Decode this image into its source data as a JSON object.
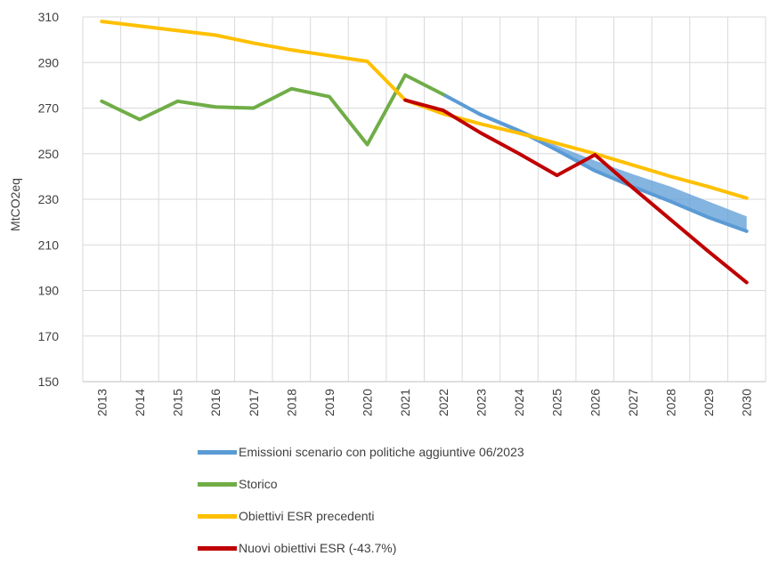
{
  "chart_data": {
    "type": "line",
    "ylabel": "MtCO2eq",
    "ylim": [
      150,
      310
    ],
    "yticks": [
      150,
      170,
      190,
      210,
      230,
      250,
      270,
      290,
      310
    ],
    "categories": [
      "2013",
      "2014",
      "2015",
      "2016",
      "2017",
      "2018",
      "2019",
      "2020",
      "2021",
      "2022",
      "2023",
      "2024",
      "2025",
      "2026",
      "2027",
      "2028",
      "2029",
      "2030"
    ],
    "grid": true,
    "legend_position": "bottom",
    "band": {
      "series": "Emissioni scenario con politiche aggiuntive 06/2023",
      "x": [
        "2022",
        "2023",
        "2024",
        "2025",
        "2026",
        "2027",
        "2028",
        "2029",
        "2030"
      ],
      "lower": [
        276,
        267,
        260,
        251.5,
        242.5,
        235.5,
        229,
        222,
        216
      ],
      "upper": [
        276,
        268,
        261,
        253.5,
        247,
        241,
        235.5,
        229,
        222.5
      ]
    },
    "series": [
      {
        "name": "Emissioni scenario con politiche aggiuntive 06/2023",
        "color": "#5B9BD5",
        "x": [
          "2022",
          "2023",
          "2024",
          "2025",
          "2026",
          "2027",
          "2028",
          "2029",
          "2030"
        ],
        "values": [
          276,
          267,
          260,
          251.5,
          242.5,
          235.5,
          229,
          222,
          216
        ]
      },
      {
        "name": "Storico",
        "color": "#70AD47",
        "x": [
          "2013",
          "2014",
          "2015",
          "2016",
          "2017",
          "2018",
          "2019",
          "2020",
          "2021",
          "2022"
        ],
        "values": [
          273,
          265,
          273,
          270.5,
          270,
          278.5,
          275,
          254,
          284.5,
          276
        ]
      },
      {
        "name": "Obiettivi ESR precedenti",
        "color": "#FFC000",
        "x": [
          "2013",
          "2014",
          "2015",
          "2016",
          "2017",
          "2018",
          "2019",
          "2020",
          "2021",
          "2022",
          "2023",
          "2024",
          "2025",
          "2026",
          "2027",
          "2028",
          "2029",
          "2030"
        ],
        "values": [
          308,
          306,
          304,
          302,
          298.5,
          295.5,
          293,
          290.5,
          273.5,
          267.5,
          263,
          259,
          254.5,
          250,
          245,
          240,
          235.5,
          230.5
        ]
      },
      {
        "name": "Nuovi obiettivi ESR (-43.7%)",
        "color": "#C00000",
        "x": [
          "2021",
          "2022",
          "2023",
          "2024",
          "2025",
          "2026",
          "2027",
          "2028",
          "2029",
          "2030"
        ],
        "values": [
          273.5,
          269,
          259,
          250,
          240.5,
          249.5,
          235,
          221,
          207,
          193.5
        ]
      }
    ]
  }
}
